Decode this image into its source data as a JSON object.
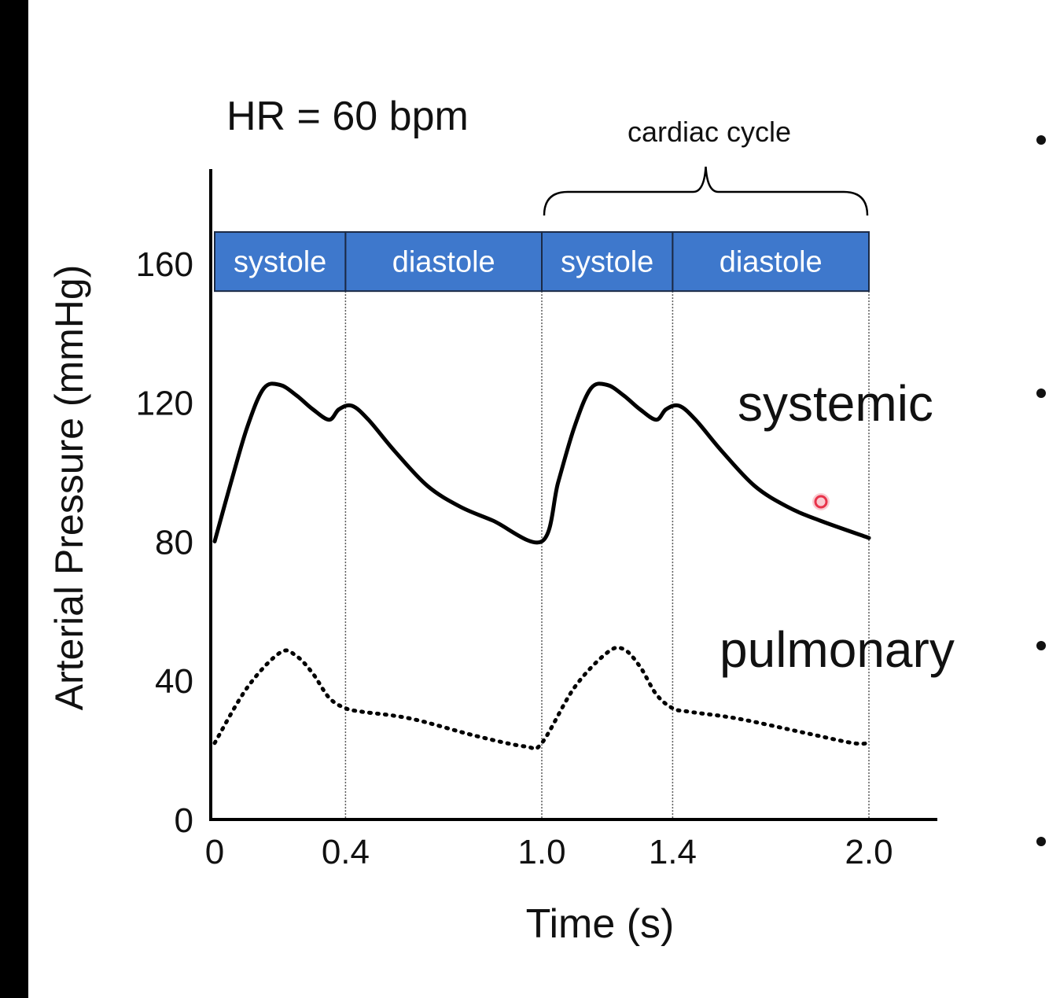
{
  "colors": {
    "phase_fill": "#3E78CC",
    "phase_border": "#1b2a45",
    "phase_text": "#ffffff",
    "curve": "#000000",
    "cursor_dot": "#e8334a"
  },
  "chart_data": {
    "type": "line",
    "title": "HR = 60 bpm",
    "xlabel": "Time (s)",
    "ylabel": "Arterial Pressure (mmHg)",
    "xlim": [
      0,
      2.3
    ],
    "ylim": [
      0,
      185
    ],
    "x_ticks": [
      {
        "value": 0,
        "label": "0"
      },
      {
        "value": 0.4,
        "label": "0.4"
      },
      {
        "value": 1.0,
        "label": "1.0"
      },
      {
        "value": 1.4,
        "label": "1.4"
      },
      {
        "value": 2.0,
        "label": "2.0"
      }
    ],
    "y_ticks": [
      {
        "value": 0,
        "label": "0"
      },
      {
        "value": 40,
        "label": "40"
      },
      {
        "value": 80,
        "label": "80"
      },
      {
        "value": 120,
        "label": "120"
      },
      {
        "value": 160,
        "label": "160"
      }
    ],
    "phases": [
      {
        "label": "systole",
        "start": 0,
        "end": 0.4
      },
      {
        "label": "diastole",
        "start": 0.4,
        "end": 1.0
      },
      {
        "label": "systole",
        "start": 1.0,
        "end": 1.4
      },
      {
        "label": "diastole",
        "start": 1.4,
        "end": 2.0
      }
    ],
    "phase_band": {
      "low": 152,
      "high": 169
    },
    "annotation": {
      "text": "cardiac cycle",
      "start": 1.0,
      "end": 2.0
    },
    "series": [
      {
        "name": "systemic",
        "style": "solid",
        "x": [
          0,
          0.05,
          0.1,
          0.15,
          0.2,
          0.25,
          0.3,
          0.35,
          0.38,
          0.42,
          0.47,
          0.55,
          0.65,
          0.75,
          0.85,
          1.0,
          1.05,
          1.1,
          1.15,
          1.2,
          1.25,
          1.3,
          1.35,
          1.38,
          1.42,
          1.47,
          1.55,
          1.65,
          1.75,
          1.85,
          2.0
        ],
        "values": [
          80,
          97,
          113,
          124,
          125,
          122,
          118,
          115,
          118,
          119,
          115,
          106,
          96,
          90,
          86,
          80,
          97,
          113,
          124,
          125,
          122,
          118,
          115,
          118,
          119,
          115,
          106,
          96,
          90,
          86,
          81
        ]
      },
      {
        "name": "pulmonary",
        "style": "dotted",
        "x": [
          0,
          0.1,
          0.2,
          0.25,
          0.3,
          0.35,
          0.4,
          0.45,
          0.6,
          0.8,
          0.95,
          1.0,
          1.1,
          1.2,
          1.25,
          1.3,
          1.35,
          1.4,
          1.45,
          1.6,
          1.8,
          1.95,
          2.0
        ],
        "values": [
          22,
          38,
          48,
          47,
          42,
          35,
          32,
          31,
          29,
          24,
          21,
          22,
          38,
          48,
          49,
          44,
          36,
          32,
          31,
          29,
          25,
          22,
          22
        ]
      }
    ]
  }
}
